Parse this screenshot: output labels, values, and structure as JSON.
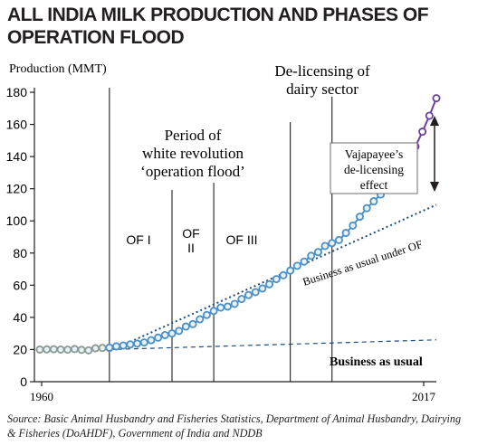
{
  "chart_data": {
    "type": "line",
    "title": "ALL INDIA MILK PRODUCTION AND PHASES OF OPERATION FLOOD",
    "ylabel": "Production (MMT)",
    "xlabel": "",
    "ylim": [
      0,
      180
    ],
    "xlim": [
      1960,
      2017
    ],
    "y_ticks": [
      0,
      20,
      40,
      60,
      80,
      100,
      120,
      140,
      160,
      180
    ],
    "x_tick_labels": [
      "1960",
      "2017"
    ],
    "grid": false,
    "series": [
      {
        "name": "",
        "color": "#8a9a90",
        "x": [
          1960,
          1961,
          1962,
          1963,
          1964,
          1965,
          1966,
          1967,
          1968,
          1969,
          1970
        ],
        "values": [
          20.0,
          20.1,
          20.2,
          20.0,
          19.9,
          20.3,
          19.8,
          19.5,
          20.8,
          21.0,
          21.0
        ]
      },
      {
        "name": "",
        "color": "#4a90c8",
        "x": [
          1970,
          1971,
          1972,
          1973,
          1974,
          1975,
          1976,
          1977,
          1978,
          1979,
          1980,
          1981,
          1982,
          1983,
          1984,
          1985,
          1986,
          1987,
          1988,
          1989,
          1990,
          1991,
          1992,
          1993,
          1994,
          1995,
          1996,
          1997,
          1998,
          1999,
          2000,
          2001,
          2002,
          2003,
          2004,
          2005,
          2006,
          2007,
          2008,
          2009,
          2010
        ],
        "values": [
          21.2,
          22.0,
          22.5,
          23.2,
          23.7,
          24.4,
          25.8,
          27.4,
          29.0,
          30.0,
          31.6,
          34.3,
          35.8,
          38.8,
          41.5,
          44.0,
          46.1,
          46.7,
          48.4,
          51.4,
          53.9,
          55.7,
          58.0,
          60.6,
          63.8,
          66.2,
          69.1,
          72.1,
          74.7,
          78.3,
          80.6,
          84.4,
          86.2,
          88.1,
          92.5,
          97.1,
          102.6,
          107.9,
          112.2,
          116.4,
          121.8
        ]
      },
      {
        "name": "",
        "color": "#6b3fa0",
        "x": [
          2010,
          2011,
          2012,
          2013,
          2014,
          2015,
          2016,
          2017
        ],
        "values": [
          121.8,
          127.9,
          132.4,
          137.7,
          146.3,
          155.5,
          165.4,
          176.3
        ]
      }
    ],
    "counterfactuals": [
      {
        "label": "Business as usual under OF",
        "x": [
          1970,
          2017
        ],
        "values": [
          19,
          110
        ]
      },
      {
        "label": "Business as usual",
        "x": [
          1970,
          2017
        ],
        "values": [
          20,
          26
        ]
      }
    ],
    "phase_lines_x": [
      1970,
      1979,
      1985,
      1996,
      2002
    ],
    "phase_labels": {
      "of1": "OF I",
      "of2_line1": "OF",
      "of2_line2": "II",
      "of3": "OF III"
    },
    "annotations": {
      "white_rev_line1": "Period of",
      "white_rev_line2": "white revolution",
      "white_rev_line3": "‘operation flood’",
      "delicensing_line1": "De-licensing of",
      "delicensing_line2": "dairy sector",
      "vaj_line1": "Vajapayee’s",
      "vaj_line2": "de-licensing",
      "vaj_line3": "effect",
      "bau_under_of": "Business as usual under OF",
      "bau": "Business as usual"
    },
    "colors": {
      "pre": "#8a9a90",
      "of": "#4a90c8",
      "post": "#6b3fa0",
      "counterfactual": "#1d4e7e"
    }
  },
  "source": "Source: Basic Animal Husbandry and Fisheries Statistics, Department of Animal Husbandry, Dairying & Fisheries (DoAHDF), Government of India and NDDB"
}
